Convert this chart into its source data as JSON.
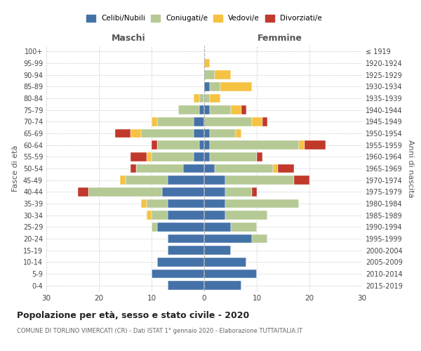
{
  "age_groups": [
    "0-4",
    "5-9",
    "10-14",
    "15-19",
    "20-24",
    "25-29",
    "30-34",
    "35-39",
    "40-44",
    "45-49",
    "50-54",
    "55-59",
    "60-64",
    "65-69",
    "70-74",
    "75-79",
    "80-84",
    "85-89",
    "90-94",
    "95-99",
    "100+"
  ],
  "birth_years": [
    "2015-2019",
    "2010-2014",
    "2005-2009",
    "2000-2004",
    "1995-1999",
    "1990-1994",
    "1985-1989",
    "1980-1984",
    "1975-1979",
    "1970-1974",
    "1965-1969",
    "1960-1964",
    "1955-1959",
    "1950-1954",
    "1945-1949",
    "1940-1944",
    "1935-1939",
    "1930-1934",
    "1925-1929",
    "1920-1924",
    "≤ 1919"
  ],
  "male": {
    "celibi": [
      7,
      10,
      9,
      7,
      7,
      9,
      7,
      7,
      8,
      7,
      4,
      2,
      1,
      2,
      2,
      1,
      0,
      0,
      0,
      0,
      0
    ],
    "coniugati": [
      0,
      0,
      0,
      0,
      0,
      1,
      3,
      4,
      14,
      8,
      9,
      8,
      8,
      10,
      7,
      4,
      1,
      0,
      0,
      0,
      0
    ],
    "vedovi": [
      0,
      0,
      0,
      0,
      0,
      0,
      1,
      1,
      0,
      1,
      0,
      1,
      0,
      2,
      1,
      0,
      1,
      0,
      0,
      0,
      0
    ],
    "divorziati": [
      0,
      0,
      0,
      0,
      0,
      0,
      0,
      0,
      2,
      0,
      1,
      3,
      1,
      3,
      0,
      0,
      0,
      0,
      0,
      0,
      0
    ]
  },
  "female": {
    "nubili": [
      7,
      10,
      8,
      5,
      9,
      5,
      4,
      4,
      4,
      4,
      2,
      1,
      1,
      1,
      0,
      1,
      0,
      1,
      0,
      0,
      0
    ],
    "coniugate": [
      0,
      0,
      0,
      0,
      3,
      5,
      8,
      14,
      5,
      13,
      11,
      9,
      17,
      5,
      9,
      4,
      1,
      2,
      2,
      0,
      0
    ],
    "vedove": [
      0,
      0,
      0,
      0,
      0,
      0,
      0,
      0,
      0,
      0,
      1,
      0,
      1,
      1,
      2,
      2,
      2,
      6,
      3,
      1,
      0
    ],
    "divorziate": [
      0,
      0,
      0,
      0,
      0,
      0,
      0,
      0,
      1,
      3,
      3,
      1,
      4,
      0,
      1,
      1,
      0,
      0,
      0,
      0,
      0
    ]
  },
  "colors": {
    "celibi": "#4472a8",
    "coniugati": "#b5c994",
    "vedovi": "#f5c242",
    "divorziati": "#c0392b"
  },
  "title": "Popolazione per età, sesso e stato civile - 2020",
  "subtitle": "COMUNE DI TORLINO VIMERCATI (CR) - Dati ISTAT 1° gennaio 2020 - Elaborazione TUTTAITALIA.IT",
  "xlim": 30,
  "xlabel_left": "Maschi",
  "xlabel_right": "Femmine",
  "ylabel_left": "Fasce di età",
  "ylabel_right": "Anni di nascita",
  "background_color": "#ffffff",
  "grid_color": "#cccccc"
}
